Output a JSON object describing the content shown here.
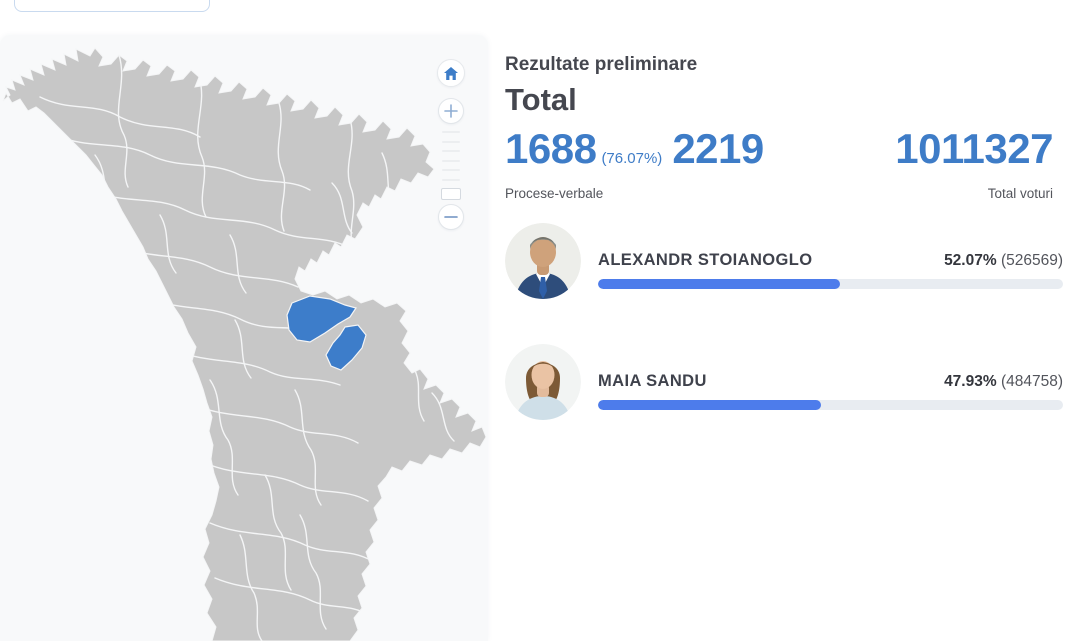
{
  "top_bar": {
    "region_select": {
      "value": "",
      "placeholder": ""
    }
  },
  "map": {
    "name": "Moldova districts map",
    "fill_color": "#c7c7c7",
    "border_color": "#f4f5f6",
    "highlight_color": "#3d7dca",
    "card_background": "#f8f9fa",
    "controls": [
      {
        "icon": "home-icon",
        "action": "reset-view"
      },
      {
        "icon": "plus-icon",
        "action": "zoom-in"
      },
      {
        "icon": "zoom-slider",
        "action": "zoom-level"
      },
      {
        "icon": "minus-icon",
        "action": "zoom-out"
      }
    ],
    "highlighted_regions_count": 2
  },
  "results_panel": {
    "subtitle": "Rezultate preliminare",
    "title": "Total",
    "stats": {
      "protocols_counted": "1688",
      "protocols_percent": "(76.07%)",
      "protocols_total": "2219",
      "protocols_label": "Procese-verbale",
      "total_votes": "1011327",
      "total_votes_label": "Total voturi"
    },
    "accent_color": "#3e7cc7",
    "bar_color": "#4d7ceb",
    "candidates": [
      {
        "name": "ALEXANDR STOIANOGLO",
        "percent": "52.07%",
        "votes": "(526569)",
        "bar_percent": 52.07
      },
      {
        "name": "MAIA SANDU",
        "percent": "47.93%",
        "votes": "(484758)",
        "bar_percent": 47.93
      }
    ]
  }
}
